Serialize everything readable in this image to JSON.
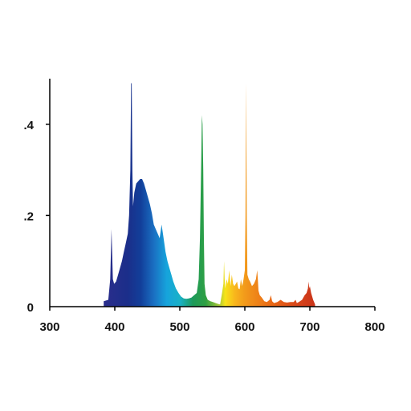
{
  "chart_data": {
    "type": "area",
    "title": "",
    "xlabel": "",
    "ylabel": "",
    "xlim": [
      300,
      800
    ],
    "ylim": [
      0,
      0.5
    ],
    "x_ticks": [
      {
        "value": 300,
        "label": "300"
      },
      {
        "value": 400,
        "label": "400"
      },
      {
        "value": 500,
        "label": "500"
      },
      {
        "value": 600,
        "label": "600"
      },
      {
        "value": 700,
        "label": "700"
      },
      {
        "value": 800,
        "label": "800"
      }
    ],
    "y_ticks": [
      {
        "value": 0,
        "label": "0"
      },
      {
        "value": 0.2,
        "label": ".2"
      },
      {
        "value": 0.4,
        "label": ".4"
      }
    ],
    "grid": false,
    "fill": "visible-spectrum",
    "spectrum_colors": [
      {
        "wavelength": 380,
        "color": "#2c2d8c"
      },
      {
        "wavelength": 420,
        "color": "#1b2e8a"
      },
      {
        "wavelength": 440,
        "color": "#123f9a"
      },
      {
        "wavelength": 460,
        "color": "#1a6fc2"
      },
      {
        "wavelength": 480,
        "color": "#16a4dc"
      },
      {
        "wavelength": 500,
        "color": "#19b1c8"
      },
      {
        "wavelength": 520,
        "color": "#1d9a5a"
      },
      {
        "wavelength": 540,
        "color": "#2fa043"
      },
      {
        "wavelength": 560,
        "color": "#a6c838"
      },
      {
        "wavelength": 570,
        "color": "#f7e31a"
      },
      {
        "wavelength": 585,
        "color": "#f8b51c"
      },
      {
        "wavelength": 600,
        "color": "#f29a1b"
      },
      {
        "wavelength": 640,
        "color": "#ea6a16"
      },
      {
        "wavelength": 680,
        "color": "#d8461a"
      },
      {
        "wavelength": 710,
        "color": "#c8321a"
      }
    ],
    "series": [
      {
        "x": [
          383,
          390,
          393,
          395,
          397,
          399,
          402,
          405,
          408,
          411,
          414,
          417,
          420,
          422,
          424,
          425,
          426,
          427,
          428,
          430,
          433,
          436,
          439,
          442,
          445,
          448,
          451,
          454,
          457,
          460,
          463,
          466,
          469,
          472,
          475,
          478,
          481,
          484,
          487,
          490,
          494,
          498,
          502,
          506,
          510,
          514,
          518,
          522,
          526,
          529,
          531,
          533,
          534,
          535,
          536,
          537,
          538,
          540,
          543,
          547,
          551,
          555,
          559,
          562,
          565,
          567,
          568,
          569,
          570,
          572,
          574,
          576,
          578,
          580,
          582,
          584,
          586,
          588,
          590,
          592,
          594,
          596,
          598,
          600,
          601,
          602,
          603,
          604,
          606,
          608,
          611,
          614,
          617,
          619,
          620,
          621,
          623,
          626,
          630,
          634,
          638,
          640,
          642,
          645,
          650,
          655,
          660,
          665,
          670,
          675,
          678,
          680,
          683,
          688,
          692,
          695,
          697,
          698,
          699,
          700,
          702,
          705,
          708
        ],
        "y": [
          0.012,
          0.015,
          0.06,
          0.17,
          0.06,
          0.05,
          0.055,
          0.07,
          0.085,
          0.1,
          0.12,
          0.14,
          0.16,
          0.2,
          0.3,
          0.49,
          0.49,
          0.3,
          0.22,
          0.25,
          0.27,
          0.275,
          0.28,
          0.28,
          0.27,
          0.255,
          0.24,
          0.225,
          0.205,
          0.18,
          0.17,
          0.16,
          0.15,
          0.18,
          0.15,
          0.12,
          0.1,
          0.085,
          0.07,
          0.055,
          0.04,
          0.03,
          0.022,
          0.018,
          0.017,
          0.018,
          0.02,
          0.025,
          0.03,
          0.06,
          0.15,
          0.32,
          0.42,
          0.4,
          0.3,
          0.15,
          0.05,
          0.025,
          0.015,
          0.012,
          0.01,
          0.008,
          0.006,
          0.005,
          0.03,
          0.05,
          0.1,
          0.06,
          0.04,
          0.06,
          0.05,
          0.08,
          0.045,
          0.07,
          0.05,
          0.045,
          0.05,
          0.055,
          0.04,
          0.038,
          0.06,
          0.045,
          0.06,
          0.08,
          0.2,
          0.49,
          0.2,
          0.07,
          0.06,
          0.055,
          0.045,
          0.05,
          0.06,
          0.08,
          0.06,
          0.035,
          0.025,
          0.02,
          0.012,
          0.01,
          0.015,
          0.025,
          0.012,
          0.008,
          0.01,
          0.015,
          0.01,
          0.009,
          0.01,
          0.01,
          0.015,
          0.008,
          0.01,
          0.015,
          0.025,
          0.03,
          0.04,
          0.055,
          0.04,
          0.045,
          0.03,
          0.015,
          0.005
        ]
      }
    ]
  }
}
